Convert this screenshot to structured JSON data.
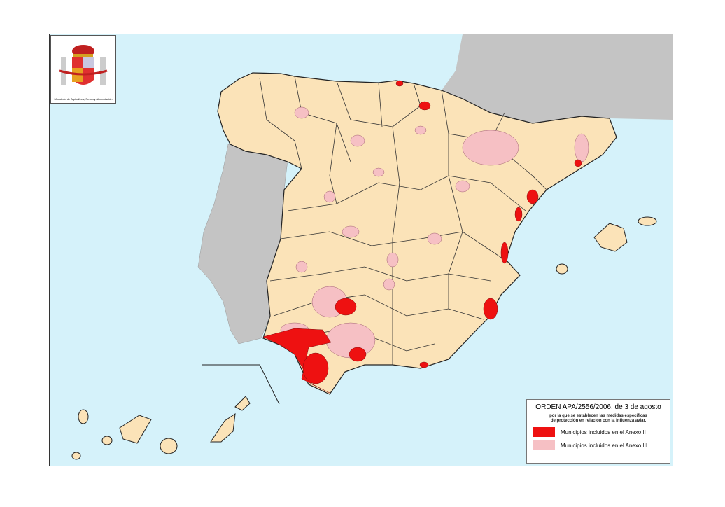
{
  "colors": {
    "sea": "#d5f2fa",
    "spain": "#fbe3b8",
    "neighbors": "#c4c4c4",
    "anexo_ii": "#ee1111",
    "anexo_iii": "#f6c0c4",
    "borders": "#222222"
  },
  "logo": {
    "text": "Ministerio de Agricultura, Pesca y Alimentación"
  },
  "legend": {
    "title": "ORDEN APA/2556/2006, de 3 de agosto",
    "subtitle_line1": "por la que se establecen las medidas específicas",
    "subtitle_line2": "de protección en relación con la influenza aviar.",
    "items": [
      {
        "label": "Municipios incluidos en el Anexo II",
        "color": "#ee1111"
      },
      {
        "label": "Municipios incluidos en el Anexo III",
        "color": "#f6c0c4"
      }
    ]
  }
}
